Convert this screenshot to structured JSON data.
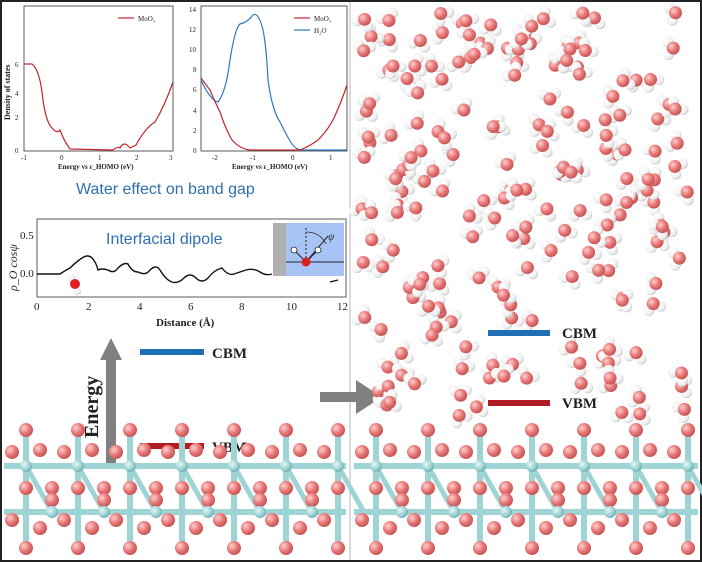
{
  "figure": {
    "dos_left": {
      "ylabel": "Density of states",
      "xlabel": "Energy vs ε_HOMO (eV)",
      "legend": [
        {
          "name": "MoO₃",
          "color": "#c0282f"
        }
      ],
      "x_ticks": [
        "-1",
        "0",
        "1",
        "2",
        "3"
      ],
      "y_ticks": [
        "0",
        "2",
        "4",
        "6"
      ]
    },
    "dos_right": {
      "xlabel": "Energy vs ε_HOMO (eV)",
      "legend": [
        {
          "name": "MoO₃",
          "color": "#c0282f"
        },
        {
          "name": "H₂O",
          "color": "#2b7cc0"
        }
      ],
      "x_ticks": [
        "-2",
        "-1",
        "0",
        "1"
      ],
      "y_ticks": [
        "0",
        "2",
        "4",
        "6",
        "8",
        "10",
        "12",
        "14"
      ]
    },
    "caption_band_gap": "Water effect on band gap",
    "dipole_plot": {
      "title": "Interfacial dipole",
      "ylabel": "ρ_O cosψ",
      "xlabel": "Distance (Å)",
      "x_ticks": [
        "0",
        "2",
        "4",
        "6",
        "8",
        "10",
        "12"
      ],
      "y_ticks": [
        "0.0",
        "0.5"
      ],
      "inset_angle_label": "ψ"
    },
    "energy_label": "Energy",
    "left_levels": [
      {
        "label": "CBM",
        "color": "#1f6fb5"
      },
      {
        "label": "VBM",
        "color": "#b01e23"
      }
    ],
    "right_levels": [
      {
        "label": "CBM",
        "color": "#1f6fb5"
      },
      {
        "label": "VBM",
        "color": "#b01e23"
      }
    ],
    "colors": {
      "oxygen": "#e87777",
      "molybdenum": "#9fd4d4",
      "hydrogen": "#f5f5f5",
      "arrow": "#808080"
    }
  }
}
